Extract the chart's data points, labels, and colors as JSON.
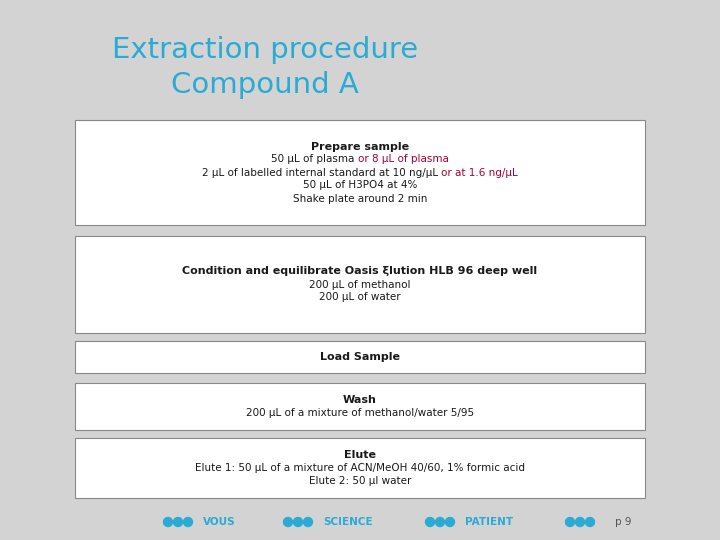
{
  "title_line1": "Extraction procedure",
  "title_line2": "Compound A",
  "title_color": "#29ABD4",
  "background_color": "#D3D3D3",
  "box_bg": "#FFFFFF",
  "box_edge": "#888888",
  "text_color_black": "#1A1A1A",
  "text_color_red": "#AA0033",
  "footer_dot_color": "#29ABD4",
  "page_num": "p 9",
  "boxes": [
    {
      "title": "Prepare sample",
      "lines": [
        [
          {
            "text": "50 μL of plasma ",
            "color": "#1A1A1A"
          },
          {
            "text": "or 8 μL of plasma",
            "color": "#AA0033"
          }
        ],
        [
          {
            "text": "2 μL of labelled internal standard at 10 ng/μL ",
            "color": "#1A1A1A"
          },
          {
            "text": "or at 1.6 ng/μL",
            "color": "#AA0033"
          }
        ],
        [
          {
            "text": "50 μL of H3PO4 at 4%",
            "color": "#1A1A1A"
          }
        ],
        [
          {
            "text": "Shake plate around 2 min",
            "color": "#1A1A1A"
          }
        ]
      ]
    },
    {
      "title": "Condition and equilibrate Oasis ξlution HLB 96 deep well",
      "lines": [
        [
          {
            "text": "200 μL of methanol",
            "color": "#1A1A1A"
          }
        ],
        [
          {
            "text": "200 μL of water",
            "color": "#1A1A1A"
          }
        ]
      ]
    },
    {
      "title": "Load Sample",
      "lines": []
    },
    {
      "title": "Wash",
      "lines": [
        [
          {
            "text": "200 μL of a mixture of methanol/water 5/95",
            "color": "#1A1A1A"
          }
        ]
      ]
    },
    {
      "title": "Elute",
      "lines": [
        [
          {
            "text": "Elute 1: 50 μL of a mixture of ACN/MeOH 40/60, 1% formic acid",
            "color": "#1A1A1A"
          }
        ],
        [
          {
            "text": "Elute 2: 50 μl water",
            "color": "#1A1A1A"
          }
        ]
      ]
    }
  ],
  "footer_sections": [
    {
      "dots_before": 3,
      "label": "VOUS",
      "dots_after": 0
    },
    {
      "dots_before": 3,
      "label": "SCIENCE",
      "dots_after": 0
    },
    {
      "dots_before": 3,
      "label": "PATIENT",
      "dots_after": 3
    }
  ]
}
